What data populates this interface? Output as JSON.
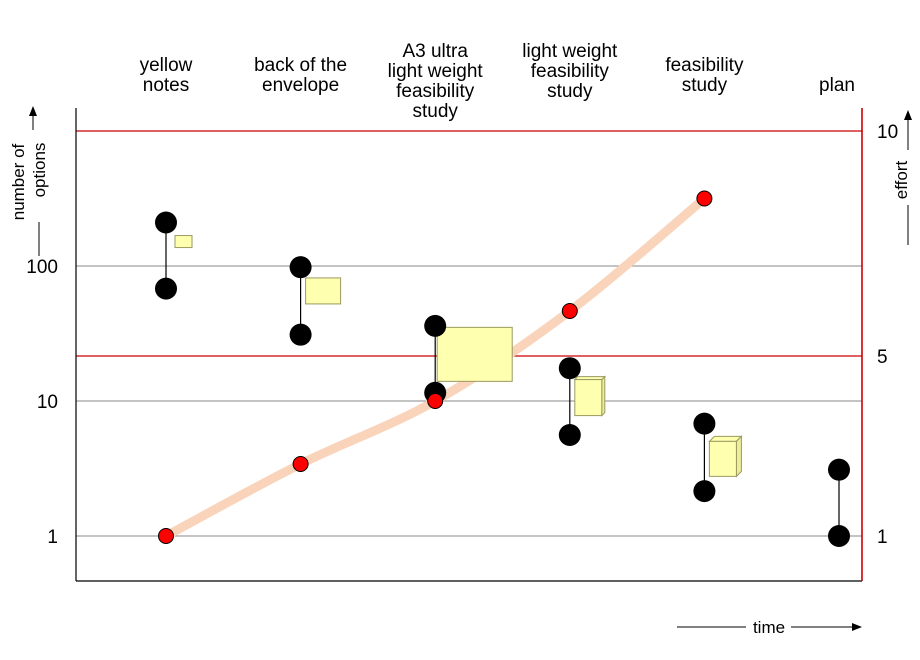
{
  "chart_data": {
    "type": "scatter",
    "title": "",
    "categories": [
      {
        "lines": [
          "yellow",
          "notes"
        ]
      },
      {
        "lines": [
          "back of the",
          "envelope"
        ]
      },
      {
        "lines": [
          "A3 ultra",
          "light weight",
          "feasibility",
          "study"
        ]
      },
      {
        "lines": [
          "light weight",
          "feasibility",
          "study"
        ]
      },
      {
        "lines": [
          "feasibility",
          "study"
        ]
      },
      {
        "lines": [
          "plan"
        ]
      }
    ],
    "left_axis": {
      "label_lines": [
        "number of",
        "options"
      ],
      "scale": "log",
      "range": [
        0.72,
        23000
      ],
      "ticks": [
        {
          "value": 1,
          "label": "1"
        },
        {
          "value": 10,
          "label": "10"
        },
        {
          "value": 100,
          "label": "100"
        }
      ]
    },
    "right_axis": {
      "label": "effort",
      "ticks": [
        {
          "value": 1,
          "label": "1"
        },
        {
          "value": 5,
          "label": "5"
        },
        {
          "value": 10,
          "label": "10"
        }
      ]
    },
    "x_axis": {
      "label": "time"
    },
    "options_range": [
      {
        "high": 210,
        "low": 68
      },
      {
        "high": 98,
        "low": 31
      },
      {
        "high": 36,
        "low": 11.5
      },
      {
        "high": 17.5,
        "low": 5.6
      },
      {
        "high": 6.8,
        "low": 2.15
      },
      {
        "high": 3.1,
        "low": 1
      }
    ],
    "effort_points": [
      1.0,
      2.6,
      4.0,
      6.0,
      8.5,
      null
    ],
    "effort_curve_after_last_point": "none",
    "colors": {
      "options": "#000000",
      "effort": "#ff0000",
      "effort_curve": "#f9d4bb",
      "effort_gridline": "#cc0000",
      "document": "#ffffb0",
      "document_edge": "#9a9a60"
    }
  }
}
